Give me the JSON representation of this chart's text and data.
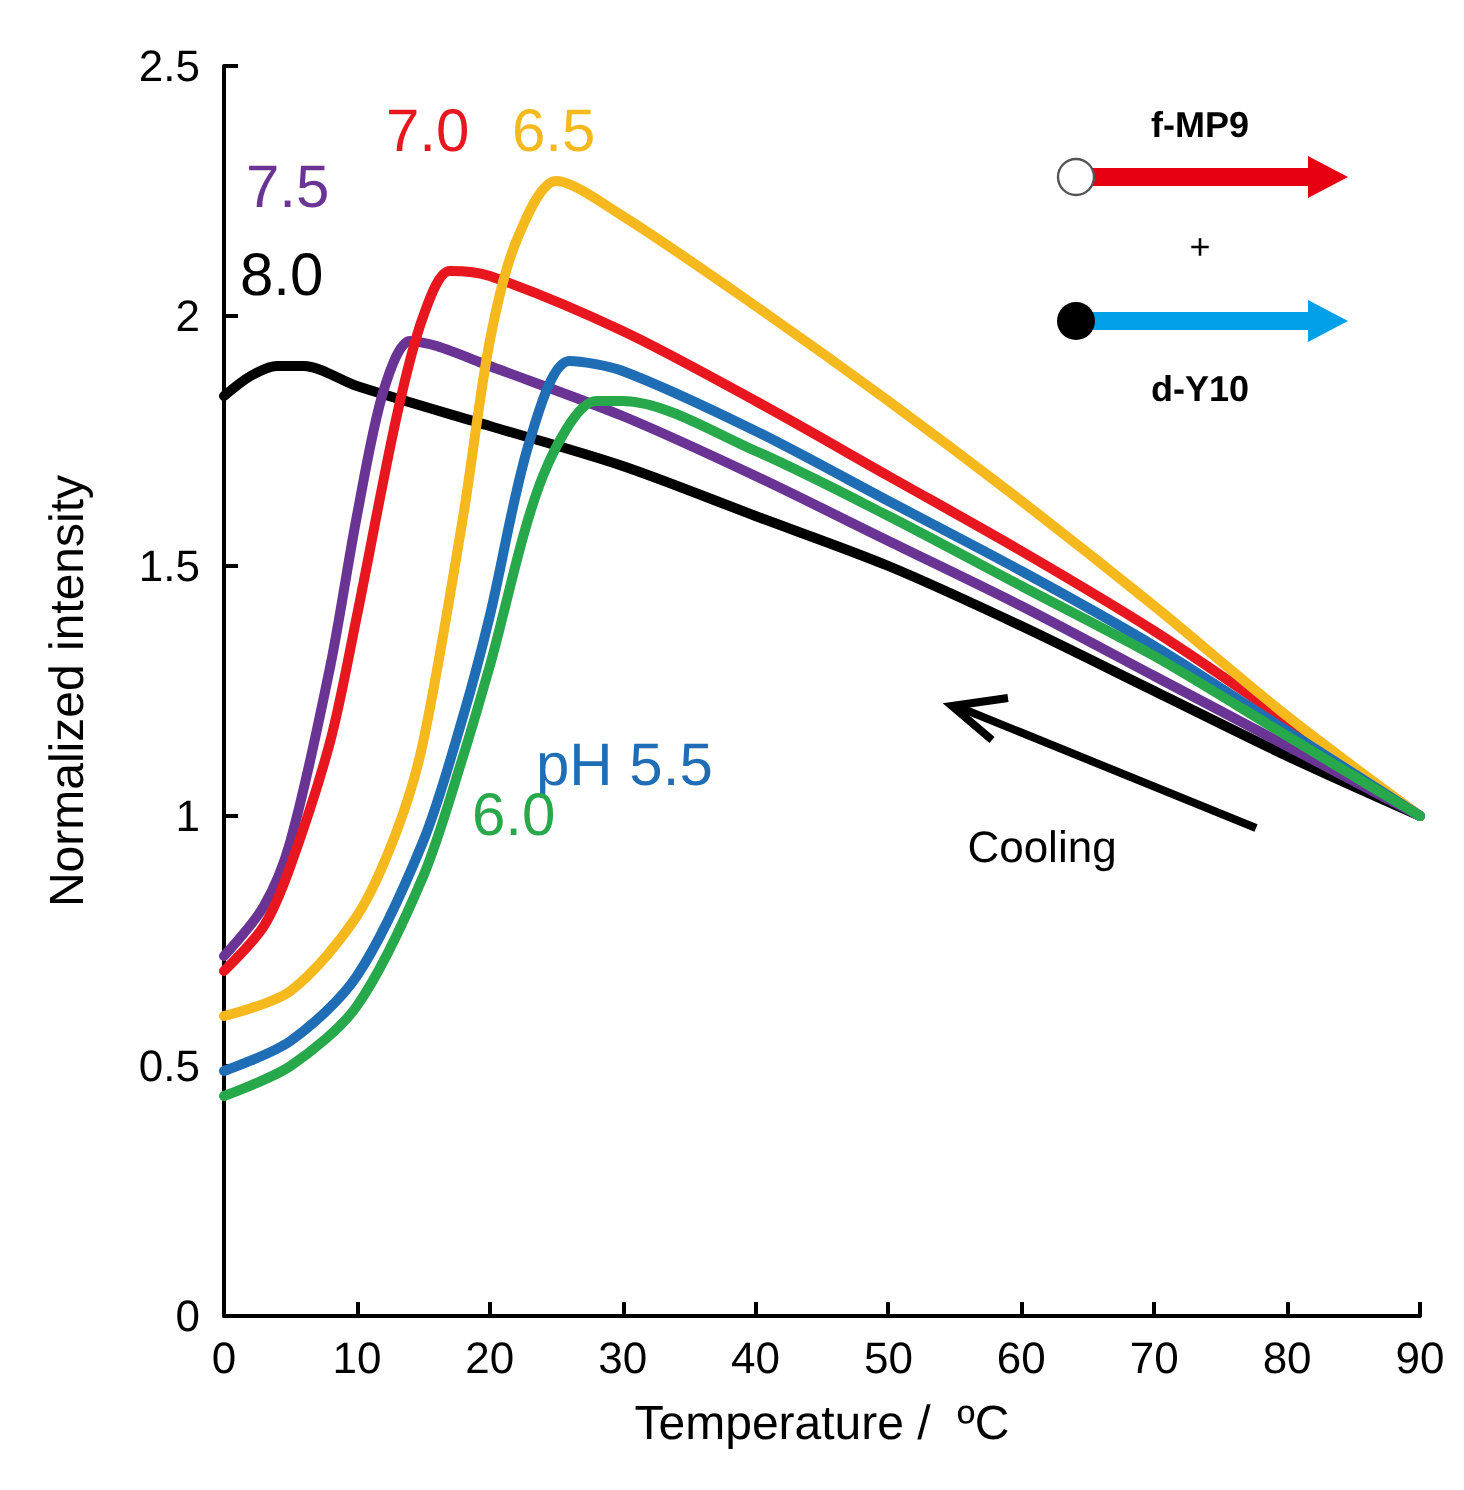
{
  "chart_data": {
    "type": "line",
    "xlabel": "Temperature /  ºC",
    "ylabel": "Normalized intensity",
    "xlim": [
      0,
      90
    ],
    "xticks": [
      0,
      10,
      20,
      30,
      40,
      50,
      60,
      70,
      80,
      90
    ],
    "ylim": [
      0,
      2.5
    ],
    "yticks": [
      0,
      0.5,
      1,
      1.5,
      2,
      2.5
    ],
    "grid": false,
    "legend": false,
    "marker": "none",
    "line_style": "solid",
    "annotations": [
      "f-MP9",
      "+",
      "d-Y10",
      "Cooling"
    ],
    "series": [
      {
        "name": "8.0",
        "color": "#000000",
        "x": [
          0,
          2,
          4,
          6,
          10,
          20,
          30,
          40,
          50,
          60,
          70,
          80,
          90
        ],
        "values": [
          1.84,
          1.88,
          1.9,
          1.9,
          1.86,
          1.78,
          1.7,
          1.6,
          1.5,
          1.38,
          1.25,
          1.12,
          1.0
        ]
      },
      {
        "name": "7.5",
        "color": "#6a3494",
        "x": [
          0,
          3,
          5,
          8,
          10,
          12,
          14,
          16,
          20,
          30,
          40,
          50,
          60,
          70,
          80,
          90
        ],
        "values": [
          0.72,
          0.82,
          0.95,
          1.3,
          1.6,
          1.85,
          1.95,
          1.94,
          1.9,
          1.8,
          1.68,
          1.55,
          1.42,
          1.28,
          1.14,
          1.0
        ]
      },
      {
        "name": "7.0",
        "color": "#e8171f",
        "x": [
          0,
          3,
          5,
          8,
          10,
          13,
          15,
          17,
          20,
          30,
          40,
          50,
          60,
          70,
          80,
          90
        ],
        "values": [
          0.69,
          0.78,
          0.9,
          1.15,
          1.4,
          1.8,
          2.0,
          2.09,
          2.08,
          1.97,
          1.83,
          1.68,
          1.53,
          1.37,
          1.19,
          1.0
        ]
      },
      {
        "name": "6.5",
        "color": "#f5b91e",
        "x": [
          0,
          5,
          10,
          13,
          15,
          18,
          20,
          22,
          25,
          30,
          40,
          50,
          60,
          70,
          80,
          90
        ],
        "values": [
          0.6,
          0.65,
          0.8,
          0.97,
          1.15,
          1.6,
          1.95,
          2.15,
          2.27,
          2.2,
          2.02,
          1.83,
          1.63,
          1.42,
          1.2,
          1.0
        ]
      },
      {
        "name": "pH 5.5",
        "color": "#1f6db5",
        "x": [
          0,
          5,
          10,
          15,
          18,
          20,
          23,
          26,
          30,
          40,
          50,
          60,
          70,
          80,
          90
        ],
        "values": [
          0.49,
          0.55,
          0.68,
          0.95,
          1.2,
          1.4,
          1.75,
          1.91,
          1.89,
          1.77,
          1.63,
          1.49,
          1.34,
          1.17,
          1.0
        ]
      },
      {
        "name": "6.0",
        "color": "#27a84a",
        "x": [
          0,
          5,
          10,
          15,
          18,
          20,
          24,
          28,
          30,
          40,
          50,
          60,
          70,
          80,
          90
        ],
        "values": [
          0.44,
          0.5,
          0.62,
          0.88,
          1.12,
          1.3,
          1.68,
          1.83,
          1.83,
          1.73,
          1.6,
          1.46,
          1.32,
          1.16,
          1.0
        ]
      }
    ]
  }
}
